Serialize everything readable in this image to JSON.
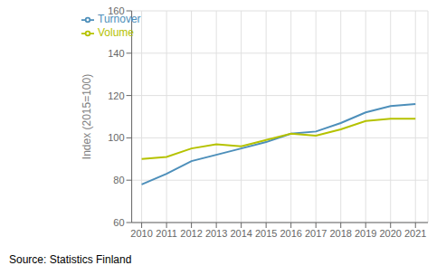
{
  "chart_data": {
    "type": "line",
    "x": [
      2010,
      2011,
      2012,
      2013,
      2014,
      2015,
      2016,
      2017,
      2018,
      2019,
      2020,
      2021
    ],
    "series": [
      {
        "name": "Turnover",
        "color": "#4d8fba",
        "values": [
          78,
          83,
          89,
          92,
          95,
          98,
          102,
          103,
          107,
          112,
          115,
          116
        ]
      },
      {
        "name": "Volume",
        "color": "#b5c200",
        "values": [
          90,
          91,
          95,
          97,
          96,
          99,
          102,
          101,
          104,
          108,
          109,
          109
        ]
      }
    ],
    "y_label": "Index (2015=100)",
    "annotation": "Source: Statistics Finland",
    "xlim": [
      2009.6,
      2021.5
    ],
    "xticks": [
      2010,
      2011,
      2012,
      2013,
      2014,
      2015,
      2016,
      2017,
      2018,
      2019,
      2020,
      2021
    ],
    "ylim": [
      60,
      160
    ],
    "yticks": [
      60,
      80,
      100,
      120,
      140,
      160
    ],
    "grid": true,
    "legend": "upper left"
  }
}
